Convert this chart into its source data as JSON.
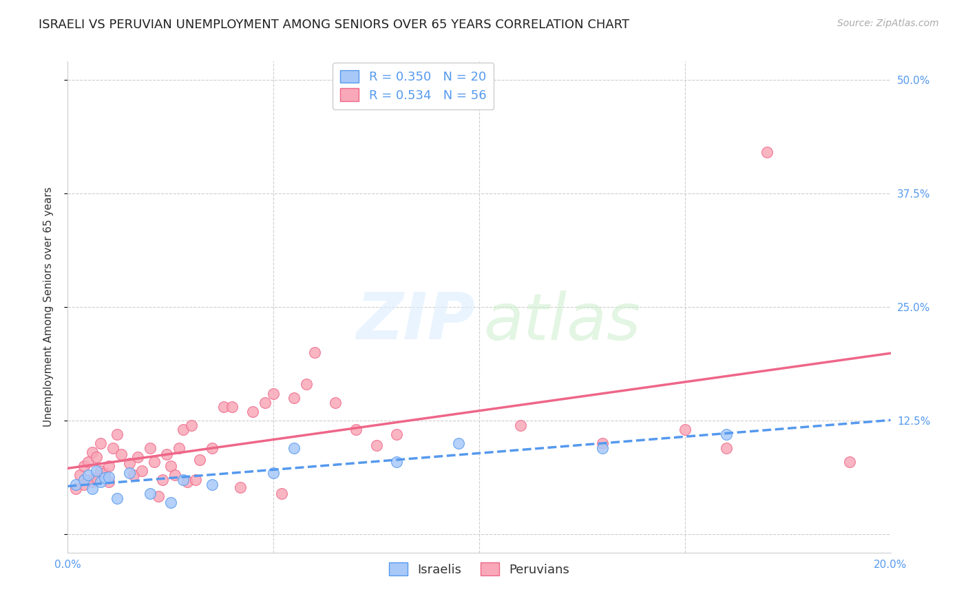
{
  "title": "ISRAELI VS PERUVIAN UNEMPLOYMENT AMONG SENIORS OVER 65 YEARS CORRELATION CHART",
  "source": "Source: ZipAtlas.com",
  "ylabel_label": "Unemployment Among Seniors over 65 years",
  "xlim": [
    0.0,
    0.2
  ],
  "ylim": [
    -0.02,
    0.52
  ],
  "xticks": [
    0.0,
    0.05,
    0.1,
    0.15,
    0.2
  ],
  "xticklabels": [
    "0.0%",
    "",
    "",
    "",
    "20.0%"
  ],
  "ytick_positions": [
    0.0,
    0.125,
    0.25,
    0.375,
    0.5
  ],
  "yticklabels_right": [
    "",
    "12.5%",
    "25.0%",
    "37.5%",
    "50.0%"
  ],
  "grid_color": "#cccccc",
  "bg_color": "#ffffff",
  "israeli_color": "#a8c8f8",
  "peruvian_color": "#f8a8b8",
  "israeli_line_color": "#5599ee",
  "peruvian_line_color": "#ee6688",
  "R_israeli": "0.350",
  "N_israeli": "20",
  "R_peruvian": "0.534",
  "N_peruvian": "56",
  "israeli_x": [
    0.002,
    0.004,
    0.005,
    0.006,
    0.007,
    0.008,
    0.009,
    0.01,
    0.012,
    0.015,
    0.02,
    0.025,
    0.028,
    0.035,
    0.05,
    0.055,
    0.08,
    0.095,
    0.13,
    0.16
  ],
  "israeli_y": [
    0.055,
    0.06,
    0.065,
    0.05,
    0.07,
    0.058,
    0.062,
    0.063,
    0.04,
    0.068,
    0.045,
    0.035,
    0.06,
    0.055,
    0.068,
    0.095,
    0.08,
    0.1,
    0.095,
    0.11
  ],
  "peruvian_x": [
    0.002,
    0.003,
    0.004,
    0.004,
    0.005,
    0.005,
    0.006,
    0.006,
    0.007,
    0.007,
    0.008,
    0.008,
    0.009,
    0.01,
    0.01,
    0.011,
    0.012,
    0.013,
    0.015,
    0.016,
    0.017,
    0.018,
    0.02,
    0.021,
    0.022,
    0.023,
    0.024,
    0.025,
    0.026,
    0.027,
    0.028,
    0.029,
    0.03,
    0.031,
    0.032,
    0.035,
    0.038,
    0.04,
    0.042,
    0.045,
    0.048,
    0.05,
    0.052,
    0.055,
    0.058,
    0.06,
    0.065,
    0.07,
    0.075,
    0.08,
    0.11,
    0.13,
    0.15,
    0.16,
    0.17,
    0.19
  ],
  "peruvian_y": [
    0.05,
    0.065,
    0.055,
    0.075,
    0.06,
    0.08,
    0.058,
    0.09,
    0.062,
    0.085,
    0.07,
    0.1,
    0.068,
    0.075,
    0.058,
    0.095,
    0.11,
    0.088,
    0.078,
    0.065,
    0.085,
    0.07,
    0.095,
    0.08,
    0.042,
    0.06,
    0.088,
    0.075,
    0.065,
    0.095,
    0.115,
    0.058,
    0.12,
    0.06,
    0.082,
    0.095,
    0.14,
    0.14,
    0.052,
    0.135,
    0.145,
    0.155,
    0.045,
    0.15,
    0.165,
    0.2,
    0.145,
    0.115,
    0.098,
    0.11,
    0.12,
    0.1,
    0.115,
    0.095,
    0.42,
    0.08
  ],
  "title_fontsize": 13,
  "axis_label_fontsize": 11,
  "tick_fontsize": 11,
  "legend_fontsize": 13,
  "source_fontsize": 10
}
